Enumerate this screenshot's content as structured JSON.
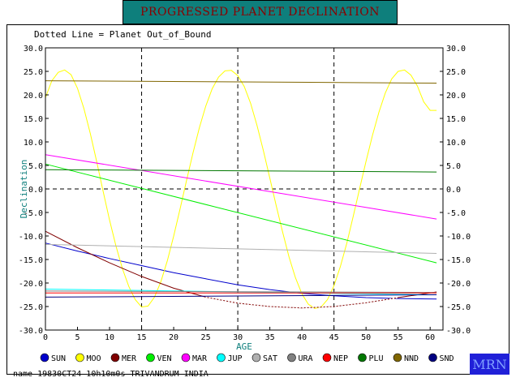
{
  "title": "PROGRESSED PLANET DECLINATION",
  "subtitle": "Dotted Line = Planet Out_of_Bound",
  "footer": "name 19830CT24 10h10m0s TRIVANDRUM INDIA",
  "logo": "MRN",
  "chart_data": {
    "type": "line",
    "xlabel": "AGE",
    "ylabel": "Declination",
    "xlim": [
      0,
      62
    ],
    "ylim": [
      -30,
      30
    ],
    "x_ticks": [
      0,
      5,
      10,
      15,
      20,
      25,
      30,
      35,
      40,
      45,
      50,
      55,
      60
    ],
    "y_ticks": [
      -30,
      -25,
      -20,
      -15,
      -10,
      -5,
      0,
      5,
      10,
      15,
      20,
      25,
      30
    ],
    "y_tick_labels": [
      "-30.0",
      "-25.0",
      "-20.0",
      "-15.0",
      "-10.0",
      "-5.0",
      "0.0",
      "5.0",
      "10.0",
      "15.0",
      "20.0",
      "25.0",
      "30.0"
    ],
    "vertical_dashed_lines": [
      15,
      30,
      45
    ],
    "horizontal_dashed_lines": [
      0
    ],
    "legend_position": "bottom",
    "legend": [
      {
        "name": "SUN",
        "color": "#0000cc"
      },
      {
        "name": "MOO",
        "color": "#ffff00"
      },
      {
        "name": "MER",
        "color": "#800000"
      },
      {
        "name": "VEN",
        "color": "#00ee00"
      },
      {
        "name": "MAR",
        "color": "#ff00ff"
      },
      {
        "name": "JUP",
        "color": "#00ffff"
      },
      {
        "name": "SAT",
        "color": "#b0b0b0"
      },
      {
        "name": "URA",
        "color": "#808080"
      },
      {
        "name": "NEP",
        "color": "#ff0000"
      },
      {
        "name": "PLU",
        "color": "#007700"
      },
      {
        "name": "NND",
        "color": "#806600"
      },
      {
        "name": "SND",
        "color": "#000080"
      }
    ],
    "series": [
      {
        "name": "SUN",
        "color": "#0000cc",
        "x": [
          0,
          5,
          10,
          15,
          20,
          25,
          30,
          35,
          40,
          45,
          50,
          55,
          61
        ],
        "y": [
          -11.5,
          -13.2,
          -14.8,
          -16.3,
          -17.8,
          -19.1,
          -20.4,
          -21.4,
          -22.2,
          -22.7,
          -23.1,
          -23.3,
          -23.4
        ]
      },
      {
        "name": "MOO",
        "color": "#ffff00",
        "x": [
          0,
          1,
          2,
          3,
          4,
          5,
          6,
          7,
          8,
          9,
          10,
          11,
          12,
          13,
          14,
          15,
          16,
          17,
          18,
          19,
          20,
          21,
          22,
          23,
          24,
          25,
          26,
          27,
          28,
          29,
          30,
          31,
          32,
          33,
          34,
          35,
          36,
          37,
          38,
          39,
          40,
          41,
          42,
          43,
          44,
          45,
          46,
          47,
          48,
          49,
          50,
          51,
          52,
          53,
          54,
          55,
          56,
          57,
          58,
          59,
          60,
          61
        ],
        "y": [
          19.4,
          23.0,
          24.8,
          25.3,
          24.3,
          21.4,
          17.1,
          11.8,
          5.8,
          -0.5,
          -6.6,
          -12.1,
          -16.9,
          -20.7,
          -23.5,
          -25.1,
          -24.9,
          -23.0,
          -19.7,
          -15.3,
          -10.0,
          -4.2,
          1.8,
          7.6,
          13.0,
          17.6,
          21.3,
          23.8,
          25.1,
          25.2,
          24.1,
          21.8,
          18.2,
          13.5,
          8.1,
          2.3,
          -3.6,
          -9.2,
          -14.5,
          -18.9,
          -22.3,
          -24.5,
          -25.4,
          -25.1,
          -23.5,
          -20.6,
          -16.5,
          -11.5,
          -5.8,
          0.1,
          5.9,
          11.4,
          16.3,
          20.4,
          23.4,
          25.0,
          25.3,
          24.2,
          21.9,
          18.5,
          16.7,
          16.7
        ]
      },
      {
        "name": "MER",
        "color": "#800000",
        "x": [
          0,
          5,
          10,
          15,
          20,
          25,
          30,
          35,
          40,
          45,
          50,
          55,
          61
        ],
        "y": [
          -9.0,
          -12.5,
          -15.7,
          -18.6,
          -21.1,
          -23.0,
          -24.3,
          -25.0,
          -25.3,
          -25.0,
          -24.2,
          -23.1,
          -21.9
        ]
      },
      {
        "name": "VEN",
        "color": "#00ee00",
        "x": [
          0,
          61
        ],
        "y": [
          5.3,
          -15.7
        ]
      },
      {
        "name": "MAR",
        "color": "#ff00ff",
        "x": [
          0,
          61
        ],
        "y": [
          7.3,
          -6.4
        ]
      },
      {
        "name": "JUP",
        "color": "#00ffff",
        "x": [
          0,
          61
        ],
        "y": [
          -21.3,
          -22.5
        ]
      },
      {
        "name": "SAT",
        "color": "#b0b0b0",
        "x": [
          0,
          61
        ],
        "y": [
          -11.8,
          -13.7
        ]
      },
      {
        "name": "URA",
        "color": "#808080",
        "x": [
          0,
          61
        ],
        "y": [
          -21.7,
          -22.0
        ]
      },
      {
        "name": "NEP",
        "color": "#ff0000",
        "x": [
          0,
          61
        ],
        "y": [
          -22.1,
          -22.1
        ]
      },
      {
        "name": "PLU",
        "color": "#007700",
        "x": [
          0,
          61
        ],
        "y": [
          4.1,
          3.6
        ]
      },
      {
        "name": "NND",
        "color": "#806600",
        "x": [
          0,
          61
        ],
        "y": [
          23.0,
          22.5
        ]
      },
      {
        "name": "SND",
        "color": "#000080",
        "x": [
          0,
          61
        ],
        "y": [
          -23.0,
          -22.5
        ]
      }
    ]
  }
}
